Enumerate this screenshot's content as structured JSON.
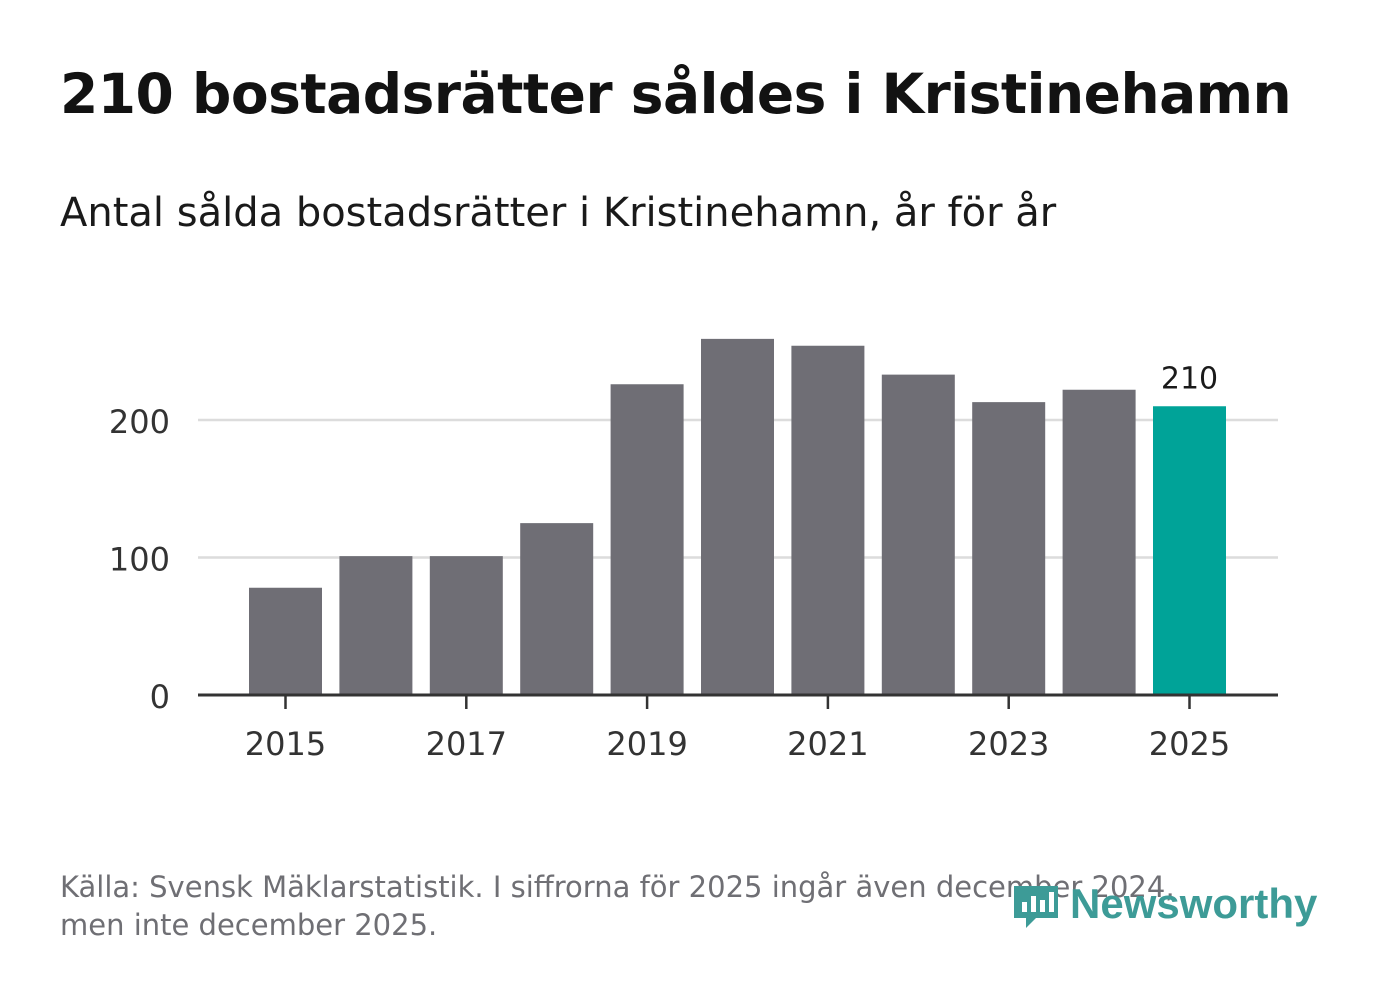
{
  "title": "210 bostadsrätter såldes i Kristinehamn",
  "subtitle": "Antal sålda bostadsrätter i Kristinehamn, år för år",
  "footer": {
    "source_line1": "Källa: Svensk Mäklarstatistik. I siffrorna för 2025 ingår även december 2024,",
    "source_line2": "men inte december 2025."
  },
  "brand": {
    "name": "Newsworthy",
    "icon": "newsworthy-logo-icon",
    "color": "#3d9b97"
  },
  "colors": {
    "bar": "#6f6e75",
    "highlight": "#00a398",
    "grid": "#dcdcdc",
    "axis": "#333333"
  },
  "chart_data": {
    "type": "bar",
    "title": "210 bostadsrätter såldes i Kristinehamn",
    "xlabel": "",
    "ylabel": "",
    "categories": [
      "2015",
      "2016",
      "2017",
      "2018",
      "2019",
      "2020",
      "2021",
      "2022",
      "2023",
      "2024",
      "2025"
    ],
    "values": [
      78,
      101,
      101,
      125,
      226,
      259,
      254,
      233,
      213,
      222,
      210
    ],
    "highlight_index": 10,
    "highlight_label": "210",
    "ylim": [
      0,
      270
    ],
    "yticks": [
      0,
      100,
      200
    ],
    "xticks": [
      "2015",
      "2017",
      "2019",
      "2021",
      "2023",
      "2025"
    ],
    "grid": true
  }
}
